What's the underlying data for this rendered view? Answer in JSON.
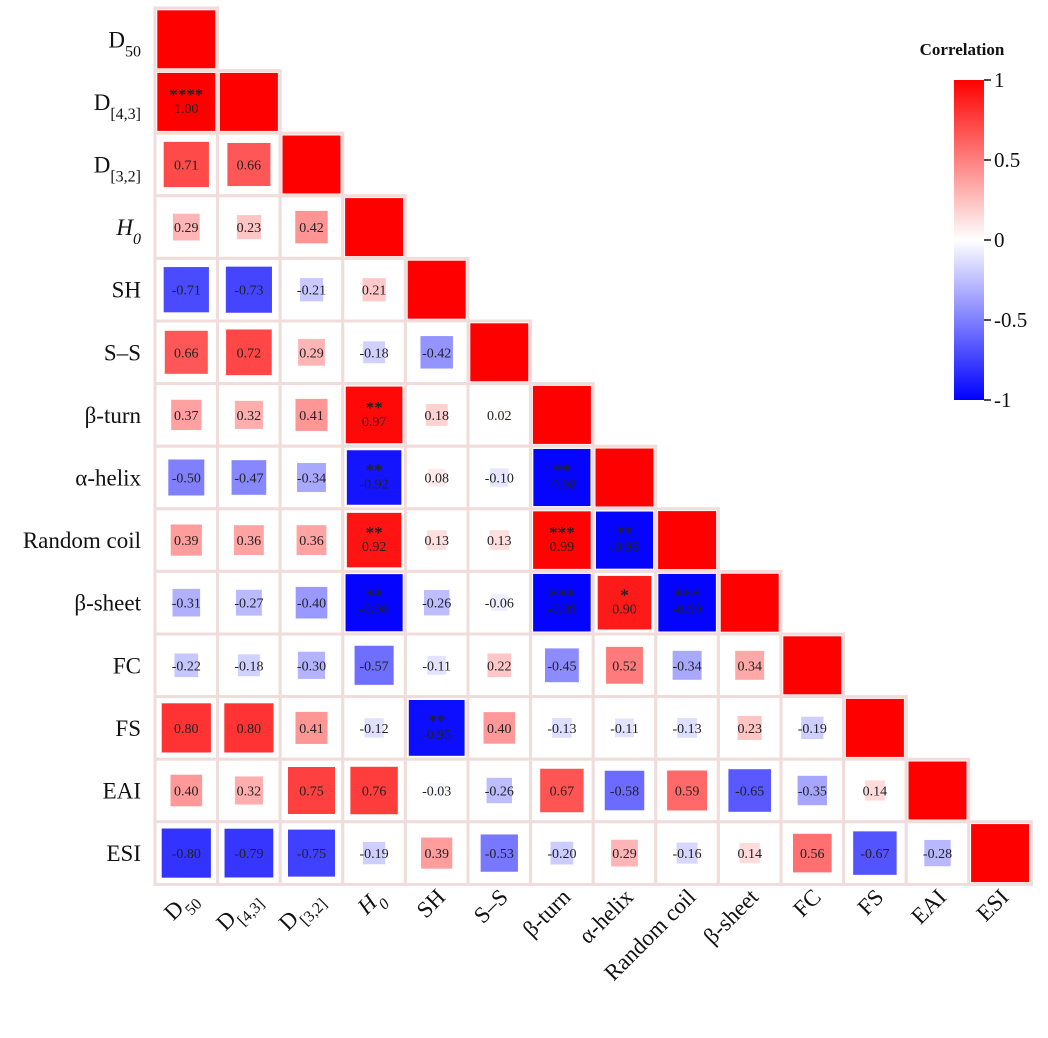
{
  "chart_data": {
    "type": "heatmap",
    "variables": [
      {
        "base": "D",
        "sub": "50",
        "italic": false
      },
      {
        "base": "D",
        "sub": "[4,3]",
        "italic": false
      },
      {
        "base": "D",
        "sub": "[3,2]",
        "italic": false
      },
      {
        "base": "H",
        "sub": "0",
        "italic": true
      },
      {
        "base": "SH",
        "sub": "",
        "italic": false
      },
      {
        "base": "S–S",
        "sub": "",
        "italic": false
      },
      {
        "base": "β-turn",
        "sub": "",
        "italic": false
      },
      {
        "base": "α-helix",
        "sub": "",
        "italic": false
      },
      {
        "base": "Random coil",
        "sub": "",
        "italic": false
      },
      {
        "base": "β-sheet",
        "sub": "",
        "italic": false
      },
      {
        "base": "FC",
        "sub": "",
        "italic": false
      },
      {
        "base": "FS",
        "sub": "",
        "italic": false
      },
      {
        "base": "EAI",
        "sub": "",
        "italic": false
      },
      {
        "base": "ESI",
        "sub": "",
        "italic": false
      }
    ],
    "values": [
      [
        1
      ],
      [
        1.0,
        1
      ],
      [
        0.71,
        0.66,
        1
      ],
      [
        0.29,
        0.23,
        0.42,
        1
      ],
      [
        -0.71,
        -0.73,
        -0.21,
        0.21,
        1
      ],
      [
        0.66,
        0.72,
        0.29,
        -0.18,
        -0.42,
        1
      ],
      [
        0.37,
        0.32,
        0.41,
        0.97,
        0.18,
        0.02,
        1
      ],
      [
        -0.5,
        -0.47,
        -0.34,
        -0.92,
        0.08,
        -0.1,
        -0.98,
        1
      ],
      [
        0.39,
        0.36,
        0.36,
        0.92,
        0.13,
        0.13,
        0.99,
        -0.98,
        1
      ],
      [
        -0.31,
        -0.27,
        -0.4,
        -0.98,
        -0.26,
        -0.06,
        -0.99,
        0.9,
        -0.99,
        1
      ],
      [
        -0.22,
        -0.18,
        -0.3,
        -0.57,
        -0.11,
        0.22,
        -0.45,
        0.52,
        -0.34,
        0.34,
        1
      ],
      [
        0.8,
        0.8,
        0.41,
        -0.12,
        -0.95,
        0.4,
        -0.13,
        -0.11,
        -0.13,
        0.23,
        -0.19,
        1
      ],
      [
        0.4,
        0.32,
        0.75,
        0.76,
        -0.03,
        -0.26,
        0.67,
        -0.58,
        0.59,
        -0.65,
        -0.35,
        0.14,
        1
      ],
      [
        -0.8,
        -0.79,
        -0.75,
        -0.19,
        0.39,
        -0.53,
        -0.2,
        0.29,
        -0.16,
        0.14,
        0.56,
        -0.67,
        -0.28,
        1
      ]
    ],
    "significance": [
      {
        "row": 1,
        "col": 0,
        "stars": "****"
      },
      {
        "row": 6,
        "col": 3,
        "stars": "**"
      },
      {
        "row": 7,
        "col": 3,
        "stars": "**"
      },
      {
        "row": 7,
        "col": 6,
        "stars": "**"
      },
      {
        "row": 8,
        "col": 3,
        "stars": "**"
      },
      {
        "row": 8,
        "col": 6,
        "stars": "***"
      },
      {
        "row": 8,
        "col": 7,
        "stars": "**"
      },
      {
        "row": 9,
        "col": 3,
        "stars": "**"
      },
      {
        "row": 9,
        "col": 6,
        "stars": "***"
      },
      {
        "row": 9,
        "col": 7,
        "stars": "*"
      },
      {
        "row": 9,
        "col": 8,
        "stars": "***"
      },
      {
        "row": 11,
        "col": 4,
        "stars": "**"
      }
    ],
    "triangle": "lower",
    "value_range": [
      -1,
      1
    ],
    "colorscale": {
      "low": "#0000ff",
      "mid": "#ffffff",
      "high": "#ff0000"
    },
    "legend": {
      "title": "Correlation",
      "ticks": [
        1,
        0.5,
        0,
        -0.5,
        -1
      ],
      "tick_labels": [
        "1",
        "0.5",
        "0",
        "-0.5",
        "-1"
      ],
      "placement": "right"
    },
    "grid_color": "#f1dcdc"
  }
}
